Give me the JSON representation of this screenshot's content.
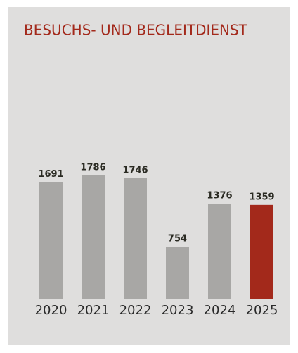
{
  "chart_data": {
    "type": "bar",
    "title": "BESUCHS- UND BEGLEITDIENST",
    "categories": [
      "2020",
      "2021",
      "2022",
      "2023",
      "2024",
      "2025"
    ],
    "values": [
      1691,
      1786,
      1746,
      754,
      1376,
      1359
    ],
    "colors": [
      "#a8a7a5",
      "#a8a7a5",
      "#a8a7a5",
      "#a8a7a5",
      "#a8a7a5",
      "#a3291b"
    ]
  }
}
